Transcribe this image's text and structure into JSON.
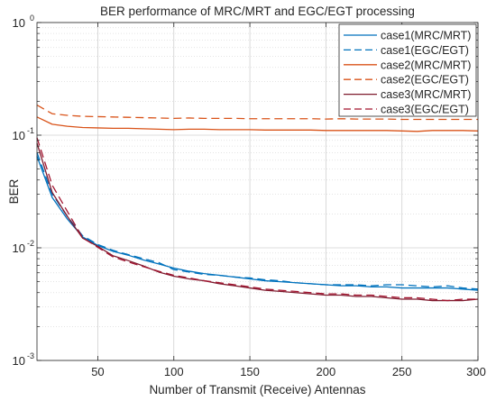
{
  "chart_data": {
    "type": "line",
    "title": "BER performance of MRC/MRT and EGC/EGT processing",
    "xlabel": "Number of Transmit (Receive) Antennas",
    "ylabel": "BER",
    "xlim": [
      10,
      300
    ],
    "ylim": [
      0.001,
      1
    ],
    "y_scale": "log",
    "grid": true,
    "legend_position": "top-right",
    "x_ticks": [
      50,
      100,
      150,
      200,
      250,
      300
    ],
    "x_tick_labels": [
      "50",
      "100",
      "150",
      "200",
      "250",
      "300"
    ],
    "y_ticks": [
      0.001,
      0.01,
      0.1,
      1
    ],
    "y_tick_labels": [
      {
        "base": "10",
        "exp": "-3"
      },
      {
        "base": "10",
        "exp": "-2"
      },
      {
        "base": "10",
        "exp": "-1"
      },
      {
        "base": "10",
        "exp": "0"
      }
    ],
    "x": [
      10,
      20,
      30,
      40,
      50,
      60,
      70,
      80,
      90,
      100,
      110,
      120,
      130,
      140,
      150,
      160,
      170,
      180,
      190,
      200,
      210,
      220,
      230,
      240,
      250,
      260,
      270,
      280,
      290,
      300
    ],
    "series": [
      {
        "name": "case1(MRC/MRT)",
        "color": "#0072BD",
        "dash": "solid",
        "values": [
          0.065,
          0.028,
          0.018,
          0.0125,
          0.0105,
          0.0093,
          0.0086,
          0.0078,
          0.0072,
          0.0066,
          0.0062,
          0.0059,
          0.0057,
          0.0055,
          0.0053,
          0.0051,
          0.005,
          0.0049,
          0.0048,
          0.0047,
          0.0046,
          0.0046,
          0.0045,
          0.0045,
          0.0044,
          0.0044,
          0.0044,
          0.0044,
          0.0043,
          0.0042
        ]
      },
      {
        "name": "case1(EGC/EGT)",
        "color": "#0072BD",
        "dash": "dashed",
        "values": [
          0.07,
          0.03,
          0.019,
          0.0128,
          0.0107,
          0.0095,
          0.0087,
          0.008,
          0.0074,
          0.0064,
          0.0061,
          0.0058,
          0.0057,
          0.0055,
          0.0054,
          0.0052,
          0.0051,
          0.0049,
          0.0048,
          0.0047,
          0.0047,
          0.0047,
          0.0046,
          0.0047,
          0.0047,
          0.0046,
          0.0045,
          0.0046,
          0.0044,
          0.0043
        ]
      },
      {
        "name": "case2(MRC/MRT)",
        "color": "#D95319",
        "dash": "solid",
        "values": [
          0.145,
          0.125,
          0.12,
          0.117,
          0.116,
          0.115,
          0.115,
          0.114,
          0.113,
          0.112,
          0.113,
          0.113,
          0.112,
          0.112,
          0.112,
          0.111,
          0.111,
          0.111,
          0.111,
          0.11,
          0.11,
          0.11,
          0.11,
          0.11,
          0.109,
          0.108,
          0.11,
          0.11,
          0.11,
          0.109
        ]
      },
      {
        "name": "case2(EGC/EGT)",
        "color": "#D95319",
        "dash": "dashed",
        "values": [
          0.185,
          0.155,
          0.15,
          0.147,
          0.146,
          0.145,
          0.144,
          0.143,
          0.142,
          0.141,
          0.142,
          0.141,
          0.141,
          0.141,
          0.14,
          0.14,
          0.14,
          0.14,
          0.14,
          0.139,
          0.14,
          0.139,
          0.139,
          0.139,
          0.138,
          0.138,
          0.138,
          0.138,
          0.138,
          0.138
        ]
      },
      {
        "name": "case3(MRC/MRT)",
        "color": "#7E1A2E",
        "dash": "solid",
        "values": [
          0.085,
          0.031,
          0.019,
          0.0122,
          0.0103,
          0.0085,
          0.0077,
          0.0069,
          0.0061,
          0.0056,
          0.0053,
          0.0051,
          0.0048,
          0.0046,
          0.0044,
          0.0042,
          0.0041,
          0.004,
          0.0039,
          0.0038,
          0.0038,
          0.0037,
          0.0037,
          0.0036,
          0.0035,
          0.0035,
          0.0034,
          0.0034,
          0.0034,
          0.0035
        ]
      },
      {
        "name": "case3(EGC/EGT)",
        "color": "#A2142F",
        "dash": "dashed",
        "values": [
          0.095,
          0.036,
          0.021,
          0.0123,
          0.0101,
          0.0083,
          0.0075,
          0.0068,
          0.0062,
          0.0057,
          0.0054,
          0.0051,
          0.0049,
          0.0047,
          0.0045,
          0.0043,
          0.0042,
          0.0041,
          0.004,
          0.0039,
          0.0039,
          0.0038,
          0.0038,
          0.0037,
          0.0036,
          0.0036,
          0.0035,
          0.0034,
          0.0035,
          0.0035
        ]
      }
    ]
  }
}
